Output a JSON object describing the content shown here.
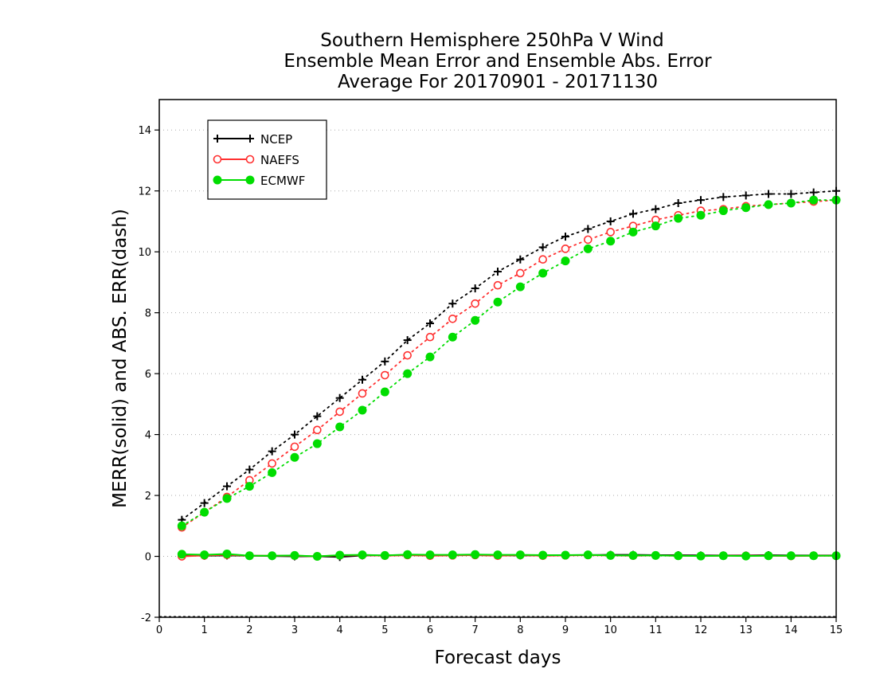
{
  "chart_data": {
    "type": "line",
    "title": [
      "Southern Hemisphere 250hPa V Wind",
      "Ensemble Mean Error and Ensemble Abs. Error",
      "Average For 20170901 - 20171130"
    ],
    "xlabel": "Forecast days",
    "ylabel": "MERR(solid) and ABS. ERR(dash)",
    "xlim": [
      0,
      15
    ],
    "ylim": [
      -2,
      15
    ],
    "xticks": [
      0,
      1,
      2,
      3,
      4,
      5,
      6,
      7,
      8,
      9,
      10,
      11,
      12,
      13,
      14,
      15
    ],
    "yticks": [
      -2,
      0,
      2,
      4,
      6,
      8,
      10,
      12,
      14
    ],
    "grid": "horizontal dotted",
    "legend_position": "top-left",
    "x": [
      0.5,
      1,
      1.5,
      2,
      2.5,
      3,
      3.5,
      4,
      4.5,
      5,
      5.5,
      6,
      6.5,
      7,
      7.5,
      8,
      8.5,
      9,
      9.5,
      10,
      10.5,
      11,
      11.5,
      12,
      12.5,
      13,
      13.5,
      14,
      14.5,
      15
    ],
    "series": [
      {
        "name": "NCEP",
        "color": "#000000",
        "marker": "plus",
        "abs_error": [
          1.2,
          1.75,
          2.3,
          2.85,
          3.45,
          4.0,
          4.6,
          5.2,
          5.8,
          6.4,
          7.1,
          7.65,
          8.3,
          8.8,
          9.35,
          9.75,
          10.15,
          10.5,
          10.75,
          11.0,
          11.25,
          11.4,
          11.6,
          11.7,
          11.8,
          11.85,
          11.9,
          11.9,
          11.95,
          12.0
        ],
        "mean_error": [
          0.05,
          0.02,
          0.03,
          0.02,
          0.01,
          0.0,
          0.0,
          -0.02,
          0.03,
          0.03,
          0.04,
          0.03,
          0.04,
          0.04,
          0.03,
          0.03,
          0.03,
          0.04,
          0.04,
          0.05,
          0.05,
          0.04,
          0.04,
          0.03,
          0.03,
          0.03,
          0.04,
          0.03,
          0.03,
          0.03
        ]
      },
      {
        "name": "NAEFS",
        "color": "#ff3030",
        "marker": "circle-open",
        "abs_error": [
          0.95,
          1.45,
          1.95,
          2.5,
          3.05,
          3.6,
          4.15,
          4.75,
          5.35,
          5.95,
          6.6,
          7.2,
          7.8,
          8.3,
          8.9,
          9.3,
          9.75,
          10.1,
          10.4,
          10.65,
          10.85,
          11.05,
          11.2,
          11.35,
          11.4,
          11.5,
          11.55,
          11.6,
          11.65,
          11.7
        ],
        "mean_error": [
          0.0,
          0.03,
          0.05,
          0.02,
          0.02,
          0.02,
          0.0,
          0.03,
          0.04,
          0.02,
          0.04,
          0.02,
          0.03,
          0.04,
          0.02,
          0.04,
          0.02,
          0.03,
          0.04,
          0.03,
          0.02,
          0.03,
          0.02,
          0.01,
          0.02,
          0.02,
          0.02,
          0.01,
          0.02,
          0.02
        ]
      },
      {
        "name": "ECMWF",
        "color": "#00dd00",
        "marker": "circle-filled",
        "abs_error": [
          1.0,
          1.45,
          1.9,
          2.3,
          2.75,
          3.25,
          3.7,
          4.25,
          4.8,
          5.4,
          6.0,
          6.55,
          7.2,
          7.75,
          8.35,
          8.85,
          9.3,
          9.7,
          10.1,
          10.35,
          10.65,
          10.85,
          11.1,
          11.2,
          11.35,
          11.45,
          11.55,
          11.6,
          11.7,
          11.7
        ],
        "mean_error": [
          0.07,
          0.05,
          0.08,
          0.02,
          0.02,
          0.03,
          0.0,
          0.04,
          0.05,
          0.03,
          0.06,
          0.05,
          0.05,
          0.06,
          0.05,
          0.05,
          0.04,
          0.04,
          0.05,
          0.03,
          0.03,
          0.03,
          0.02,
          0.01,
          0.02,
          0.01,
          0.02,
          0.02,
          0.02,
          0.02
        ]
      }
    ]
  }
}
